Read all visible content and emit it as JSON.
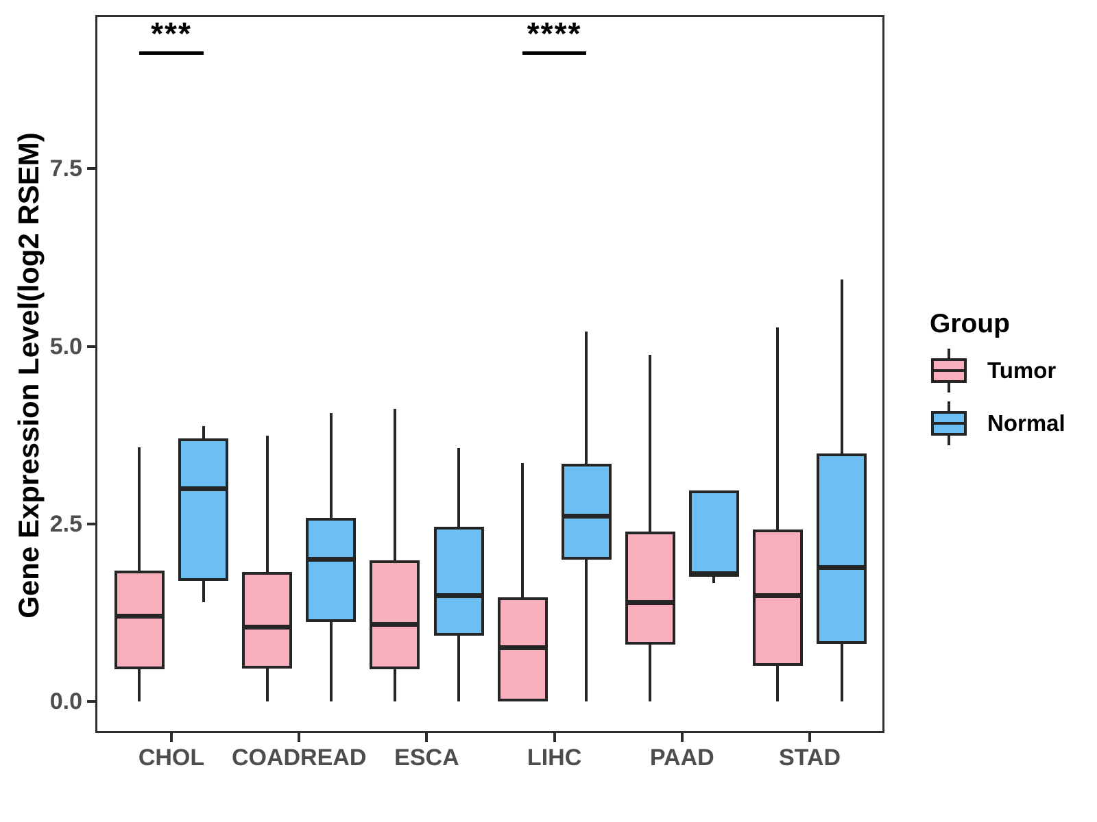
{
  "chart_data": {
    "type": "boxplot",
    "title": "",
    "xlabel": "",
    "ylabel": "Gene Expression Level(log2 RSEM)",
    "categories": [
      "CHOL",
      "COADREAD",
      "ESCA",
      "LIHC",
      "PAAD",
      "STAD"
    ],
    "y_ticks": [
      "0.0",
      "2.5",
      "5.0",
      "7.5"
    ],
    "ylim": [
      -0.44,
      9.66
    ],
    "grid": false,
    "legend_position": "right",
    "colors": {
      "tumor_fill": "#F9AEBD",
      "normal_fill": "#6DBFF2",
      "line": "#252525",
      "tick_label": "#4d4d4d"
    },
    "series": [
      {
        "name": "Tumor",
        "fill": "#F9AEBD",
        "boxes": [
          {
            "category": "CHOL",
            "low": 0.0,
            "q1": 0.46,
            "median": 1.2,
            "q3": 1.84,
            "high": 3.58
          },
          {
            "category": "COADREAD",
            "low": 0.0,
            "q1": 0.47,
            "median": 1.05,
            "q3": 1.82,
            "high": 3.74
          },
          {
            "category": "ESCA",
            "low": 0.0,
            "q1": 0.46,
            "median": 1.09,
            "q3": 1.99,
            "high": 4.12
          },
          {
            "category": "LIHC",
            "low": 0.0,
            "q1": 0.0,
            "median": 0.76,
            "q3": 1.47,
            "high": 3.36
          },
          {
            "category": "PAAD",
            "low": 0.0,
            "q1": 0.8,
            "median": 1.4,
            "q3": 2.39,
            "high": 4.88
          },
          {
            "category": "STAD",
            "low": 0.0,
            "q1": 0.5,
            "median": 1.49,
            "q3": 2.42,
            "high": 5.27
          }
        ]
      },
      {
        "name": "Normal",
        "fill": "#6DBFF2",
        "boxes": [
          {
            "category": "CHOL",
            "low": 1.4,
            "q1": 1.7,
            "median": 3.0,
            "q3": 3.7,
            "high": 3.88
          },
          {
            "category": "COADREAD",
            "low": 0.0,
            "q1": 1.12,
            "median": 2.0,
            "q3": 2.59,
            "high": 4.06
          },
          {
            "category": "ESCA",
            "low": 0.0,
            "q1": 0.93,
            "median": 1.49,
            "q3": 2.46,
            "high": 3.57
          },
          {
            "category": "LIHC",
            "low": 0.0,
            "q1": 2.0,
            "median": 2.61,
            "q3": 3.35,
            "high": 5.21
          },
          {
            "category": "PAAD",
            "low": 1.67,
            "q1": 1.76,
            "median": 1.8,
            "q3": 2.97,
            "high": 2.97
          },
          {
            "category": "STAD",
            "low": 0.0,
            "q1": 0.81,
            "median": 1.89,
            "q3": 3.49,
            "high": 5.94
          }
        ]
      }
    ],
    "annotations": [
      {
        "category": "CHOL",
        "label": "***",
        "bar_y": 9.15
      },
      {
        "category": "LIHC",
        "label": "****",
        "bar_y": 9.15
      }
    ],
    "legend": {
      "title": "Group",
      "entries": [
        {
          "label": "Tumor",
          "fill": "#F9AEBD"
        },
        {
          "label": "Normal",
          "fill": "#6DBFF2"
        }
      ]
    }
  }
}
